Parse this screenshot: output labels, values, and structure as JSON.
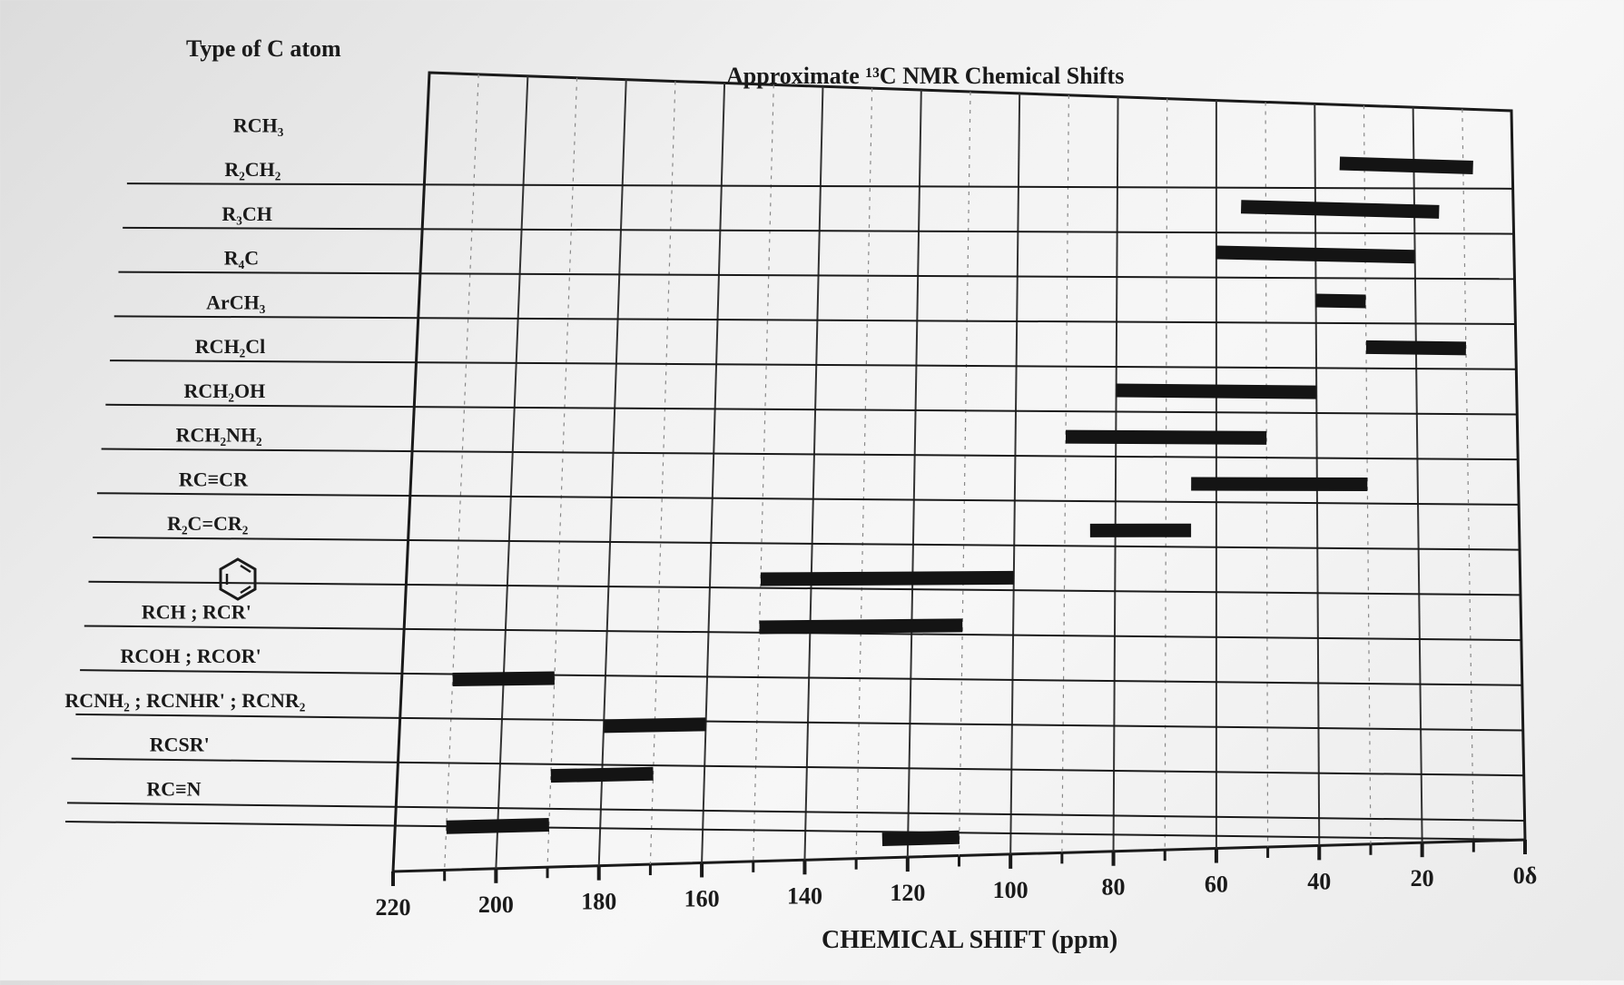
{
  "chart_data": {
    "type": "bar",
    "title": "Approximate ¹³C NMR Chemical Shifts",
    "row_header": "Type of C atom",
    "xlabel": "CHEMICAL SHIFT (ppm)",
    "x_range": [
      220,
      0
    ],
    "x_ticks": [
      {
        "value": 220,
        "label": "220"
      },
      {
        "value": 200,
        "label": "200"
      },
      {
        "value": 180,
        "label": "180"
      },
      {
        "value": 160,
        "label": "160"
      },
      {
        "value": 140,
        "label": "140"
      },
      {
        "value": 120,
        "label": "120"
      },
      {
        "value": 100,
        "label": "100"
      },
      {
        "value": 80,
        "label": "80"
      },
      {
        "value": 60,
        "label": "60"
      },
      {
        "value": 40,
        "label": "40"
      },
      {
        "value": 20,
        "label": "20"
      },
      {
        "value": 0,
        "label": "0δ"
      }
    ],
    "grid": true,
    "rows": [
      {
        "label": "RCH₃",
        "range": [
          8,
          35
        ]
      },
      {
        "label": "R₂CH₂",
        "range": [
          15,
          55
        ]
      },
      {
        "label": "R₃CH",
        "range": [
          20,
          60
        ]
      },
      {
        "label": "R₄C",
        "range": [
          30,
          40
        ]
      },
      {
        "label": "ArCH₃",
        "range": [
          10,
          30
        ]
      },
      {
        "label": "RCH₂Cl",
        "range": [
          40,
          80
        ]
      },
      {
        "label": "RCH₂OH",
        "range": [
          50,
          90
        ]
      },
      {
        "label": "RCH₂NH₂",
        "range": [
          30,
          65
        ]
      },
      {
        "label": "RC≡CR",
        "range": [
          65,
          85
        ]
      },
      {
        "label": "R₂C=CR₂",
        "range": [
          100,
          150
        ]
      },
      {
        "label": "benzene",
        "range": [
          110,
          150
        ]
      },
      {
        "label": "RCH ; RCR'",
        "range": [
          190,
          210
        ]
      },
      {
        "label": "RCOH ; RCOR'",
        "range": [
          160,
          180
        ]
      },
      {
        "label": "RCNH₂ ; RCNHR' ; RCNR₂",
        "range": [
          170,
          190
        ]
      },
      {
        "label": "RCSR'",
        "range": [
          190,
          210
        ]
      },
      {
        "label": "RC≡N",
        "range": [
          110,
          125
        ]
      }
    ],
    "bar_color": "#141414"
  }
}
